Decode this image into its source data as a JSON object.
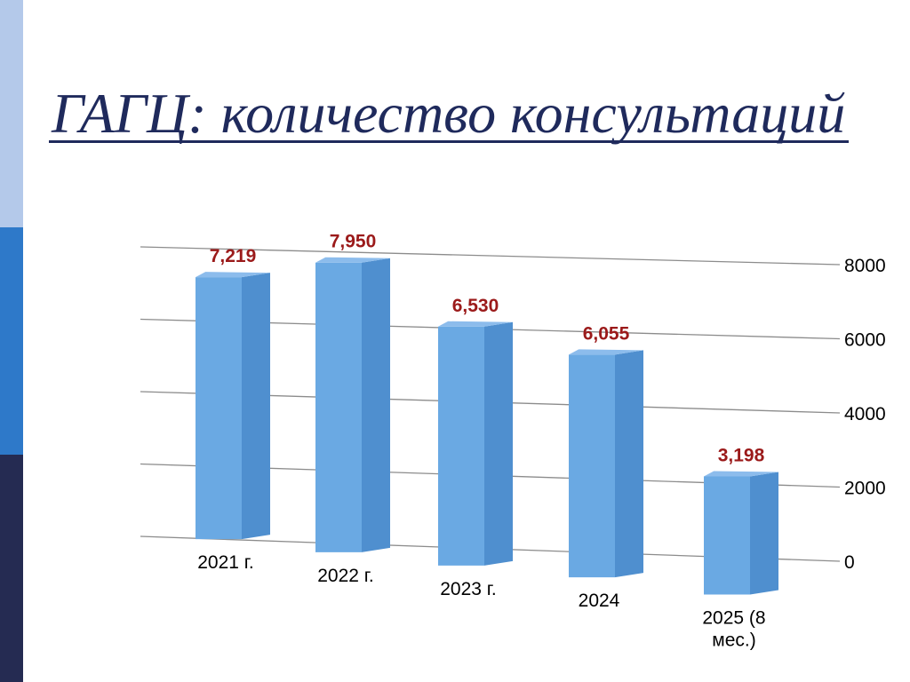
{
  "slide": {
    "title": "ГАГЦ: количество консультаций"
  },
  "colors": {
    "title_text": "#1f2a5c",
    "side_top": "#b4c9ea",
    "side_mid": "#2e79c9",
    "side_bottom": "#252b52",
    "bar_front": "#6aa9e3",
    "bar_side": "#4f8fcf",
    "bar_top": "#8cbcec",
    "data_label": "#9b1a1a",
    "grid": "#8c8c8c"
  },
  "chart_data": {
    "type": "bar",
    "style": "3d-perspective",
    "title": "",
    "xlabel": "",
    "ylabel": "",
    "categories": [
      "2021 г.",
      "2022 г.",
      "2023 г.",
      "2024",
      "2025 (8 мес.)"
    ],
    "category_lines": [
      [
        "2021 г."
      ],
      [
        "2022 г."
      ],
      [
        "2023 г."
      ],
      [
        "2024"
      ],
      [
        "2025 (8",
        "мес.)"
      ]
    ],
    "values": [
      7219,
      7950,
      6530,
      6055,
      3198
    ],
    "data_labels": [
      "7,219",
      "7,950",
      "6,530",
      "6,055",
      "3,198"
    ],
    "ylim": [
      0,
      8000
    ],
    "yticks": [
      0,
      2000,
      4000,
      6000,
      8000
    ],
    "ytick_labels": [
      "0",
      "2000",
      "4000",
      "6000",
      "8000"
    ],
    "y_axis_side": "right",
    "grid": true,
    "legend": "none"
  }
}
